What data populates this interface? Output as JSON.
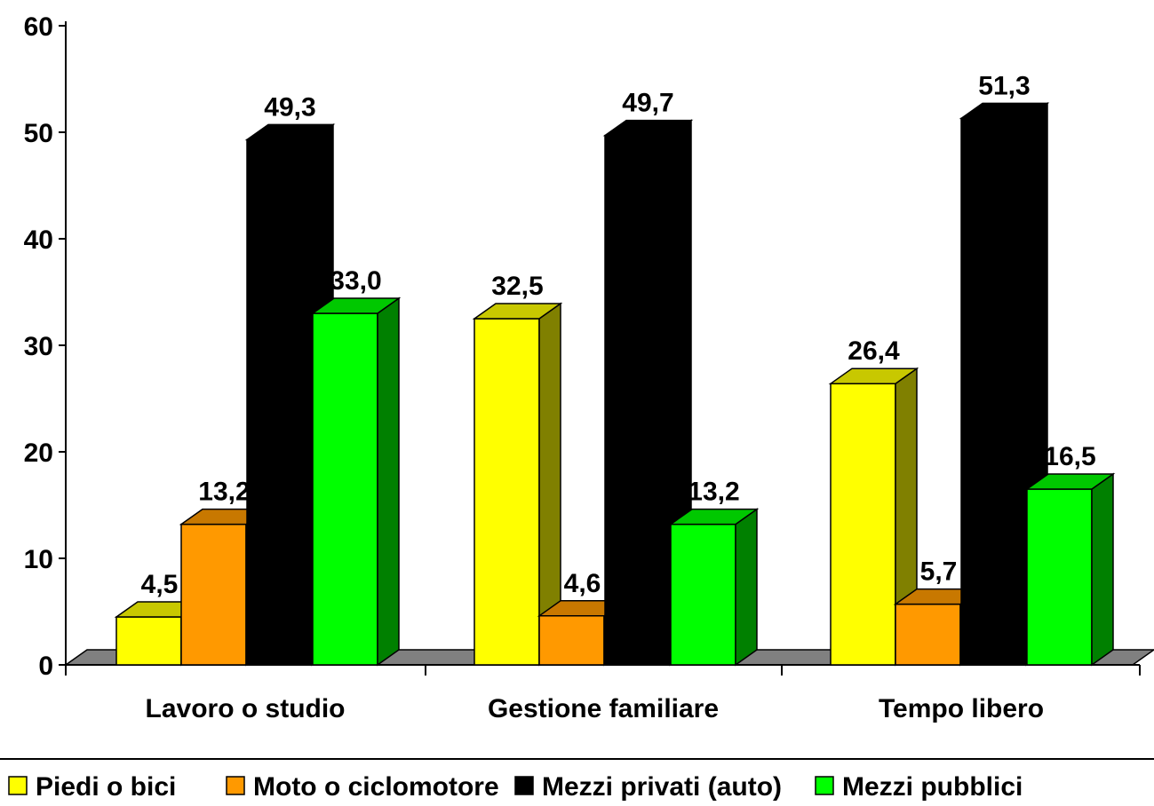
{
  "chart_data": {
    "type": "bar",
    "categories": [
      "Lavoro o studio",
      "Gestione familiare",
      "Tempo libero"
    ],
    "series": [
      {
        "name": "Piedi o bici",
        "values": [
          "4,5",
          "32,5",
          "26,4"
        ],
        "color": "#FFFF00",
        "side_color": "#808000",
        "top_color": "#C8C800"
      },
      {
        "name": "Moto o ciclomotore",
        "values": [
          "13,2",
          "4,6",
          "5,7"
        ],
        "color": "#FF9900",
        "side_color": "#804C00",
        "top_color": "#C87800"
      },
      {
        "name": "Mezzi privati (auto)",
        "values": [
          "49,3",
          "49,7",
          "51,3"
        ],
        "color": "#000000",
        "side_color": "#000000",
        "top_color": "#000000"
      },
      {
        "name": "Mezzi pubblici",
        "values": [
          "33,0",
          "13,2",
          "16,5"
        ],
        "color": "#00FF00",
        "side_color": "#008000",
        "top_color": "#00C800"
      }
    ],
    "yticks": [
      "0",
      "10",
      "20",
      "30",
      "40",
      "50",
      "60"
    ],
    "ylim": [
      0,
      60
    ],
    "grid": false,
    "legend_position": "bottom",
    "floor_color": "#808080"
  }
}
